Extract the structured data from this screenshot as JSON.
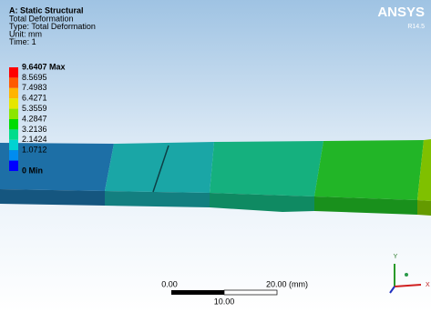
{
  "header": {
    "title": "A: Static Structural",
    "lines": [
      "Total Deformation",
      "Type: Total Deformation",
      "Unit: mm",
      "Time: 1"
    ]
  },
  "brand": {
    "logo": "ANSYS",
    "version": "R14.5"
  },
  "legend": {
    "entries": [
      {
        "label": "9.6407 Max",
        "color": "#ff0000"
      },
      {
        "label": "8.5695",
        "color": "#ff5a00"
      },
      {
        "label": "7.4983",
        "color": "#ffb400"
      },
      {
        "label": "6.4271",
        "color": "#e6e600"
      },
      {
        "label": "5.3559",
        "color": "#8ce600"
      },
      {
        "label": "4.2847",
        "color": "#00dc00"
      },
      {
        "label": "3.2136",
        "color": "#00dc8c"
      },
      {
        "label": "2.1424",
        "color": "#00d2d2"
      },
      {
        "label": "1.0712",
        "color": "#008cf0"
      },
      {
        "label": "0 Min",
        "color": "#0000ff"
      }
    ]
  },
  "scale_bar": {
    "start": "0.00",
    "end": "20.00 (mm)",
    "mid": "10.00"
  },
  "triad": {
    "x": "X",
    "y": "Y"
  }
}
